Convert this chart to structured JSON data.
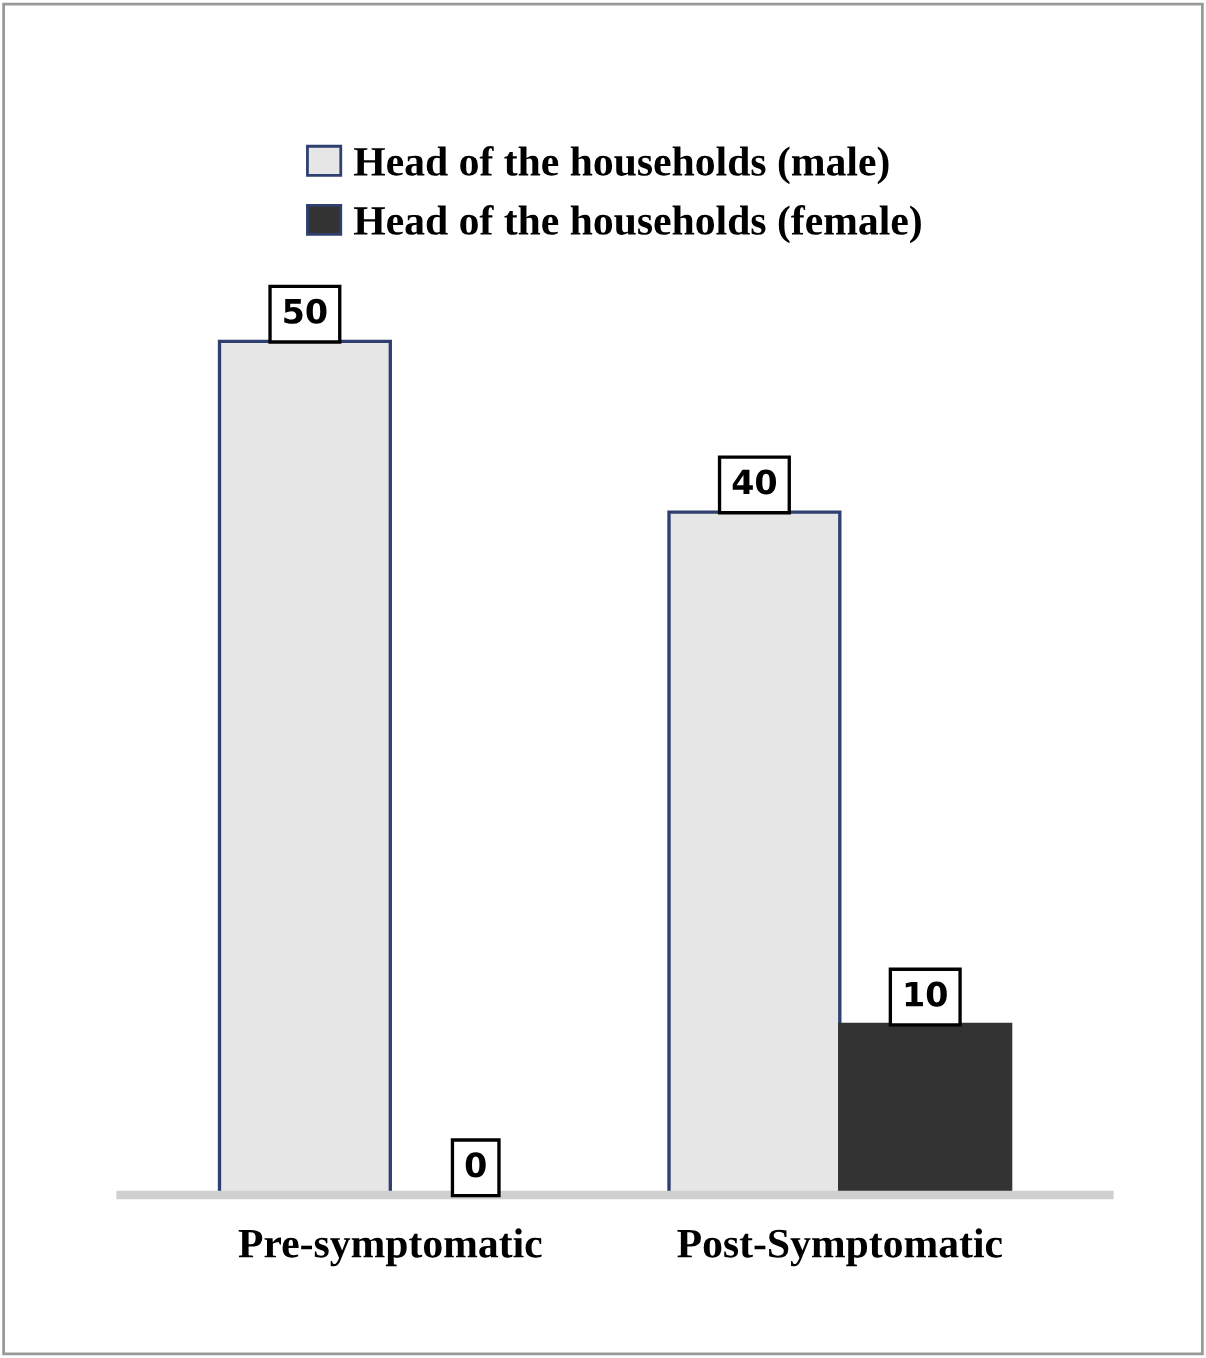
{
  "chart_data": {
    "type": "bar",
    "categories": [
      "Pre-symptomatic",
      "Post-Symptomatic"
    ],
    "series": [
      {
        "name": "Head of the households (male)",
        "color": "#e6e6e6",
        "values": [
          50,
          40
        ]
      },
      {
        "name": "Head of the households (female)",
        "color": "#333333",
        "values": [
          0,
          10
        ]
      }
    ],
    "data_labels": true,
    "legend": "top",
    "grid": false
  }
}
